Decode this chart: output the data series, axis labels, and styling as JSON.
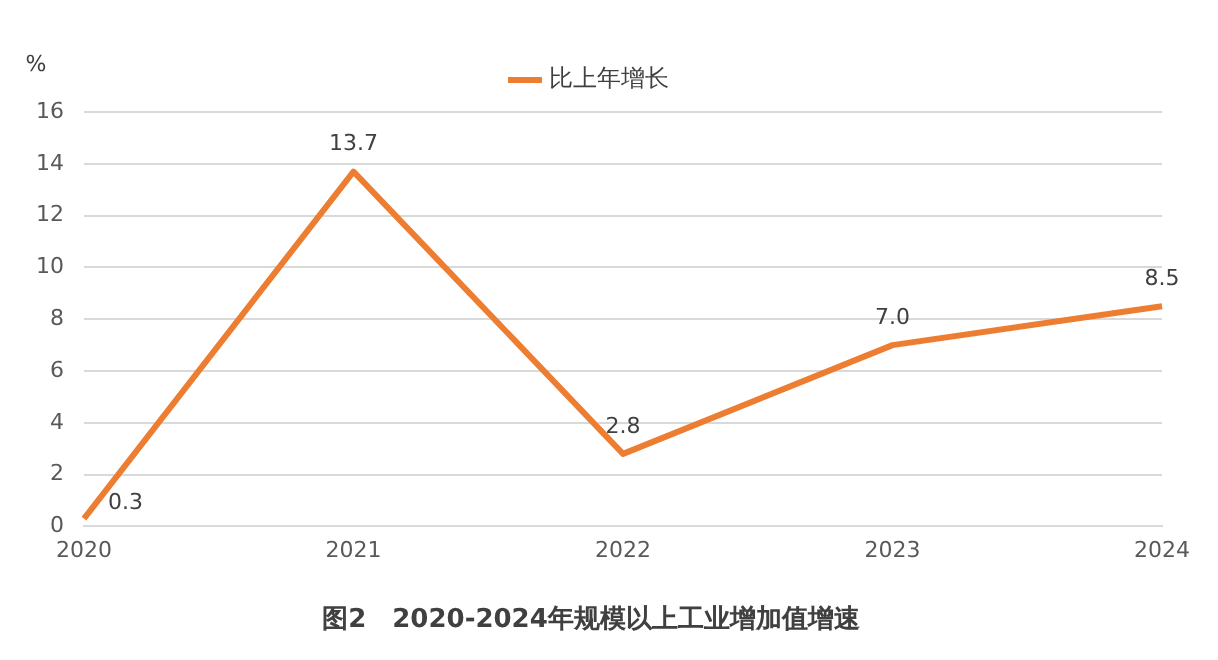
{
  "chart_data": {
    "type": "line",
    "title": "图2　2020-2024年规模以上工业增加值增速",
    "ylabel": "%",
    "categories": [
      "2020",
      "2021",
      "2022",
      "2023",
      "2024"
    ],
    "series": [
      {
        "name": "比上年增长",
        "color": "#ed7d31",
        "values": [
          0.3,
          13.7,
          2.8,
          7.0,
          8.5
        ]
      }
    ],
    "value_labels": [
      "0.3",
      "13.7",
      "2.8",
      "7.0",
      "8.5"
    ],
    "ylim": [
      0,
      16
    ],
    "yticks": [
      0,
      2,
      4,
      6,
      8,
      10,
      12,
      14,
      16
    ],
    "grid": "y",
    "legend": "top",
    "marker": "none",
    "line_style": "solid"
  }
}
